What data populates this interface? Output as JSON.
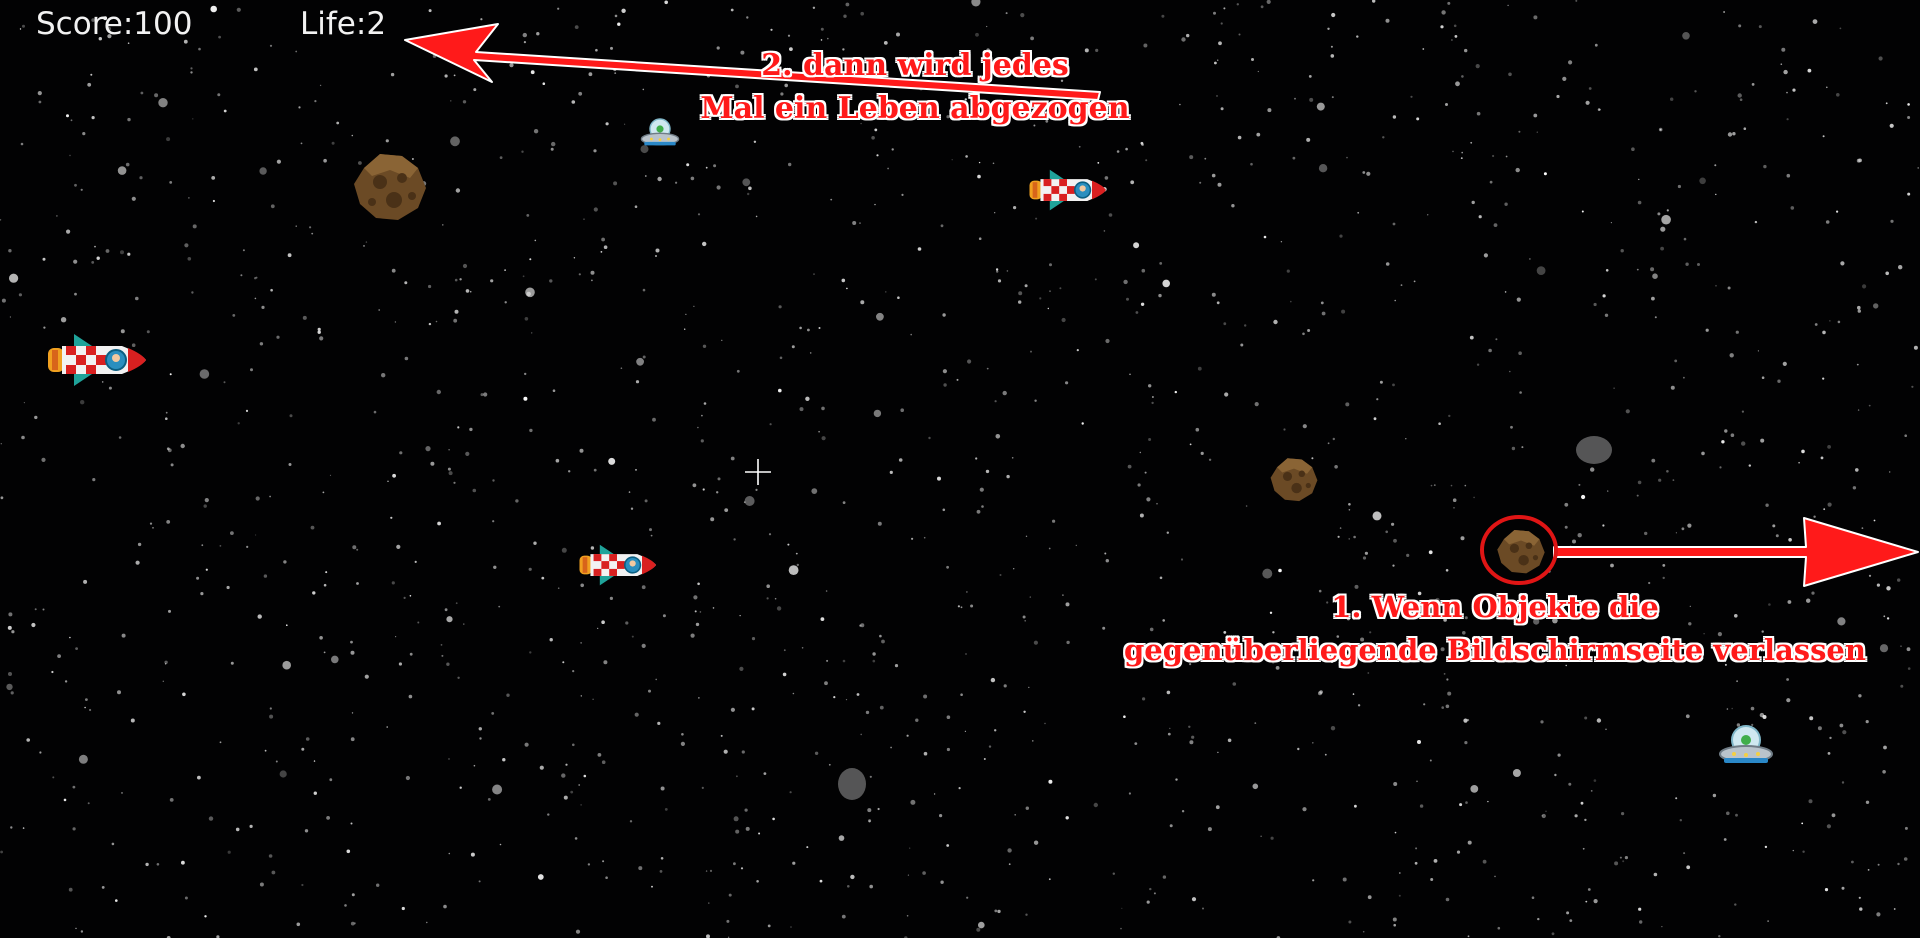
{
  "hud": {
    "score_label": "Score:",
    "score_value": "100",
    "life_label": "Life:",
    "life_value": "2"
  },
  "annotations": {
    "top_line1": "2. dann wird jedes",
    "top_line2": "Mal ein Leben abgezogen",
    "bottom_line1": "1. Wenn Objekte die",
    "bottom_line2": "gegenüberliegende Bildschirmseite verlassen"
  },
  "colors": {
    "background": "#020203",
    "hud_text": "#f2f2f2",
    "annotation": "#ff1a1a",
    "annotation_outline": "#ffffff"
  },
  "sprites": {
    "rocket": "rocket-icon",
    "asteroid": "asteroid-icon",
    "ufo": "ufo-icon",
    "crosshair": "crosshair-icon"
  }
}
